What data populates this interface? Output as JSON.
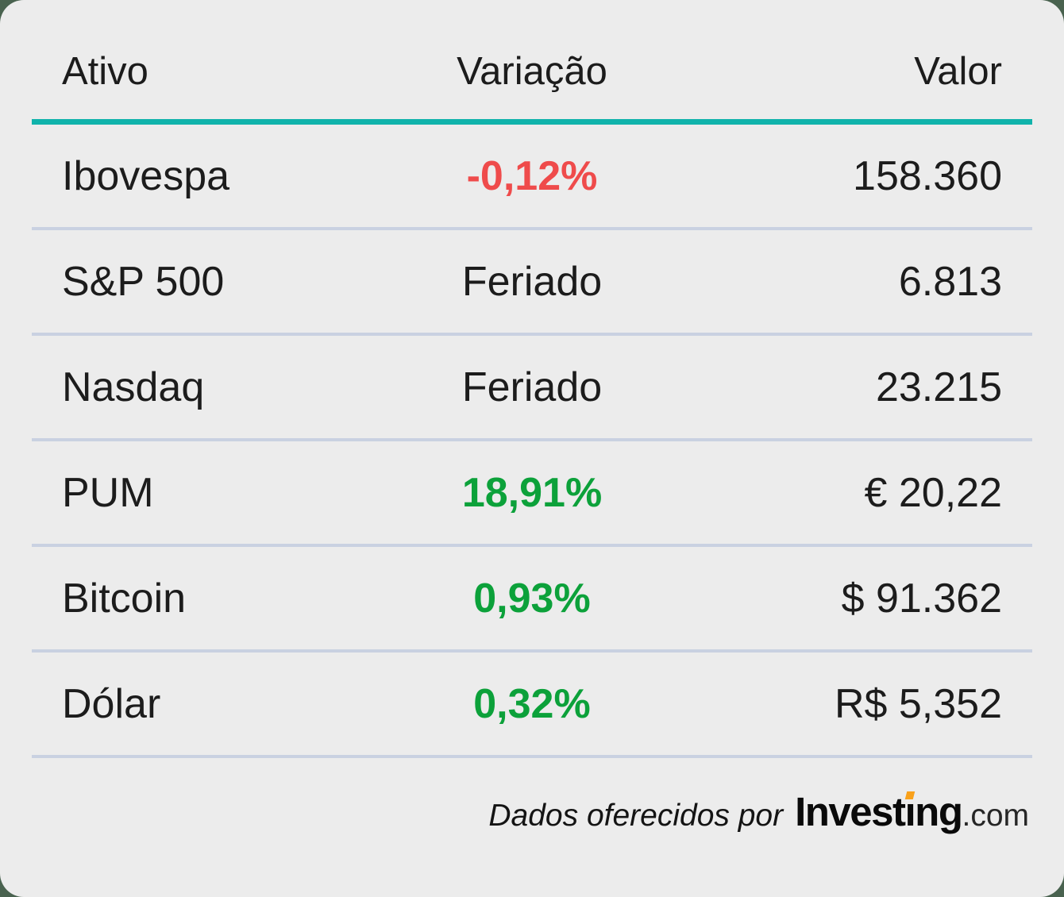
{
  "table": {
    "columns": [
      {
        "label": "Ativo"
      },
      {
        "label": "Variação"
      },
      {
        "label": "Valor"
      }
    ],
    "rows": [
      {
        "asset": "Ibovespa",
        "variation": "-0,12%",
        "tone": "negative",
        "value": "158.360"
      },
      {
        "asset": "S&P 500",
        "variation": "Feriado",
        "tone": "neutral",
        "value": "6.813"
      },
      {
        "asset": "Nasdaq",
        "variation": "Feriado",
        "tone": "neutral",
        "value": "23.215"
      },
      {
        "asset": "PUM",
        "variation": "18,91%",
        "tone": "positive",
        "value": "€ 20,22"
      },
      {
        "asset": "Bitcoin",
        "variation": "0,93%",
        "tone": "positive",
        "value": "$ 91.362"
      },
      {
        "asset": "Dólar",
        "variation": "0,32%",
        "tone": "positive",
        "value": "R$ 5,352"
      }
    ]
  },
  "footer": {
    "attribution": "Dados oferecidos por",
    "logo": {
      "full": "Investing.com",
      "part1": "Invest",
      "part2": "ı",
      "part3": "ng",
      "suffix": ".com"
    }
  },
  "colors": {
    "positive": "#0ca13a",
    "negative": "#ef4b4b",
    "teal_rule": "#10b3ab",
    "divider": "#c9d1e1",
    "card_background": "#ececec",
    "page_background": "#49624f",
    "logo_orange": "#f9a11b"
  },
  "chart_data": {
    "type": "table",
    "columns": [
      "Ativo",
      "Variação",
      "Valor"
    ],
    "rows": [
      [
        "Ibovespa",
        "-0,12%",
        "158.360"
      ],
      [
        "S&P 500",
        "Feriado",
        "6.813"
      ],
      [
        "Nasdaq",
        "Feriado",
        "23.215"
      ],
      [
        "PUM",
        "18,91%",
        "€ 20,22"
      ],
      [
        "Bitcoin",
        "0,93%",
        "$ 91.362"
      ],
      [
        "Dólar",
        "0,32%",
        "R$ 5,352"
      ]
    ],
    "notes": "Variação tones: Ibovespa negative (red); PUM, Bitcoin, Dólar positive (green); Feriado neutral (black)"
  }
}
